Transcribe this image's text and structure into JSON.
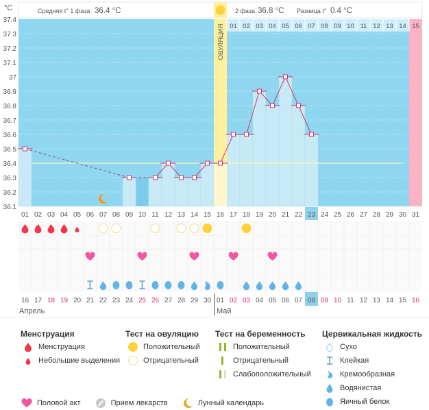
{
  "header": {
    "unit_label": "°C",
    "phase1_label": "Средняя t° 1 фаза",
    "phase1_value": "36.4 °C",
    "phase2_label": "2 фаза",
    "phase2_value": "36.8 °C",
    "diff_label": "Разница t°",
    "diff_value": "0.4 °C",
    "ovulation_label": "ОВУЛЯЦИЯ"
  },
  "colors": {
    "bg_chart": "#8fd6f0",
    "bar": "#c8eaf7",
    "ovulation": "#fff0a0",
    "period": "#f9b3c5",
    "line": "#d2366a",
    "cover_line": "#fff7b0",
    "today": "#8fd0ea"
  },
  "chart_data": {
    "type": "line",
    "title": "",
    "ylabel": "°C",
    "ylim": [
      36.1,
      37.4
    ],
    "yticks": [
      "37.4",
      "37.3",
      "37.2",
      "37.1",
      "37",
      "36.9",
      "36.8",
      "36.7",
      "36.6",
      "36.5",
      "36.4",
      "36.3",
      "36.2",
      "36.1"
    ],
    "cover_line": 36.4,
    "ovulation_day": 16,
    "today_day": 23,
    "next_period_day": 31,
    "moon_day": 7,
    "x": [
      "01",
      "02",
      "03",
      "04",
      "05",
      "06",
      "07",
      "08",
      "09",
      "10",
      "11",
      "12",
      "13",
      "14",
      "15",
      "16",
      "17",
      "18",
      "19",
      "20",
      "21",
      "22",
      "23",
      "24",
      "25",
      "26",
      "27",
      "28",
      "29",
      "30",
      "31"
    ],
    "temperatures": [
      {
        "day": 1,
        "value": 36.5
      },
      {
        "day": 9,
        "value": 36.3
      },
      {
        "day": 11,
        "value": 36.3
      },
      {
        "day": 12,
        "value": 36.4
      },
      {
        "day": 13,
        "value": 36.3
      },
      {
        "day": 14,
        "value": 36.3
      },
      {
        "day": 15,
        "value": 36.4
      },
      {
        "day": 16,
        "value": 36.4
      },
      {
        "day": 17,
        "value": 36.6
      },
      {
        "day": 18,
        "value": 36.6
      },
      {
        "day": 19,
        "value": 36.9
      },
      {
        "day": 20,
        "value": 36.8
      },
      {
        "day": 21,
        "value": 37.0
      },
      {
        "day": 22,
        "value": 36.8
      },
      {
        "day": 23,
        "value": 36.6
      }
    ],
    "dark_bar_day": 10,
    "dark_bar_value": 36.3,
    "next_cycle_labels": [
      "01",
      "02",
      "03",
      "04",
      "05",
      "06",
      "07",
      "08",
      "09",
      "10",
      "11",
      "12",
      "13",
      "14",
      "15"
    ]
  },
  "rows": {
    "menstruation": [
      {
        "day": 1,
        "kind": "full"
      },
      {
        "day": 2,
        "kind": "full"
      },
      {
        "day": 3,
        "kind": "full"
      },
      {
        "day": 4,
        "kind": "full"
      },
      {
        "day": 5,
        "kind": "light"
      }
    ],
    "ovulation_tests": [
      {
        "day": 7,
        "result": "negative"
      },
      {
        "day": 8,
        "result": "negative"
      },
      {
        "day": 11,
        "result": "negative"
      },
      {
        "day": 13,
        "result": "negative"
      },
      {
        "day": 14,
        "result": "negative"
      },
      {
        "day": 15,
        "result": "positive"
      },
      {
        "day": 18,
        "result": "positive"
      }
    ],
    "intercourse_days": [
      6,
      10,
      14,
      17,
      20
    ],
    "cervical": [
      {
        "day": 6,
        "kind": "sticky"
      },
      {
        "day": 7,
        "kind": "watery"
      },
      {
        "day": 8,
        "kind": "eggwhite"
      },
      {
        "day": 9,
        "kind": "eggwhite"
      },
      {
        "day": 10,
        "kind": "sticky"
      },
      {
        "day": 11,
        "kind": "eggwhite"
      },
      {
        "day": 12,
        "kind": "eggwhite"
      },
      {
        "day": 13,
        "kind": "eggwhite"
      },
      {
        "day": 14,
        "kind": "watery"
      },
      {
        "day": 15,
        "kind": "creamy"
      },
      {
        "day": 16,
        "kind": "eggwhite"
      },
      {
        "day": 18,
        "kind": "watery"
      },
      {
        "day": 19,
        "kind": "watery"
      },
      {
        "day": 20,
        "kind": "watery"
      },
      {
        "day": 21,
        "kind": "watery"
      },
      {
        "day": 22,
        "kind": "watery"
      }
    ]
  },
  "dates": {
    "labels": [
      "16",
      "17",
      "18",
      "19",
      "20",
      "21",
      "22",
      "23",
      "24",
      "25",
      "26",
      "27",
      "28",
      "29",
      "30",
      "01",
      "02",
      "03",
      "04",
      "05",
      "06",
      "07",
      "08",
      "09",
      "10",
      "11",
      "12",
      "13",
      "14",
      "15",
      "16"
    ],
    "weekend_indexes": [
      3,
      4,
      10,
      11,
      17,
      18,
      24,
      25,
      31
    ],
    "today_index": 23,
    "month1": "Апрель",
    "month2": "Май"
  },
  "legend": {
    "menstruation": {
      "title": "Менструация",
      "items": [
        "Менструация",
        "Небольшие выделения"
      ]
    },
    "ovulation_test": {
      "title": "Тест на овуляцию",
      "items": [
        "Положительный",
        "Отрицательный"
      ]
    },
    "pregnancy_test": {
      "title": "Тест на беременность",
      "items": [
        "Положительный",
        "Отрицательный",
        "Слабоположительный"
      ]
    },
    "cervical": {
      "title": "Цервикальная жидкость",
      "items": [
        "Сухо",
        "Клейкая",
        "Кремообразная",
        "Водянистая",
        "Яичный белок"
      ]
    },
    "other": [
      "Половой акт",
      "Прием лекарств",
      "Лунный календарь"
    ]
  }
}
